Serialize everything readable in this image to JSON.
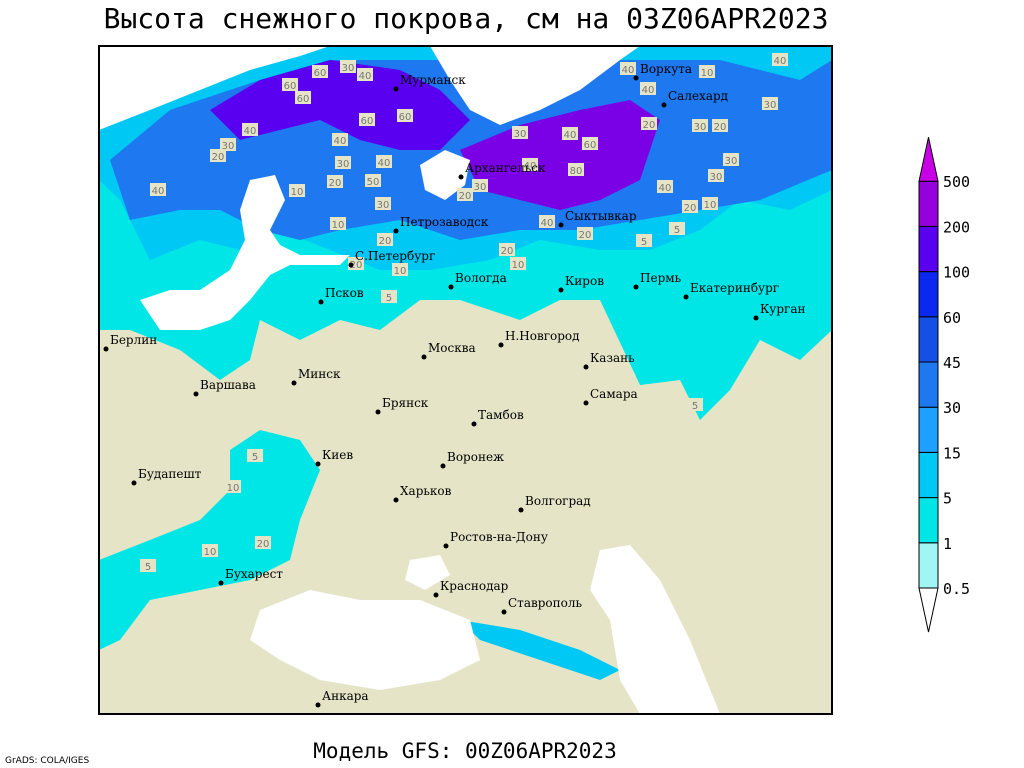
{
  "header": {
    "title": "Высота снежного покрова, см на 03Z06APR2023"
  },
  "legend": {
    "levels": [
      0.5,
      1,
      5,
      15,
      30,
      45,
      60,
      100,
      200,
      500
    ],
    "colors": [
      "#ffffff",
      "#a0f5f5",
      "#00e6e6",
      "#00c8f5",
      "#1ea0ff",
      "#1e78f0",
      "#1450e6",
      "#0a28f0",
      "#5a00f0",
      "#9600dc",
      "#c800e6"
    ]
  },
  "cities": [
    "Мурманск",
    "Воркута",
    "Салехард",
    "Архангельск",
    "Сыктывкар",
    "Петрозаводск",
    "С.Петербург",
    "Вологда",
    "Киров",
    "Пермь",
    "Екатеринбург",
    "Курган",
    "Псков",
    "Берлин",
    "Москва",
    "Н.Новгород",
    "Казань",
    "Варшава",
    "Минск",
    "Брянск",
    "Тамбов",
    "Самара",
    "Киев",
    "Воронеж",
    "Будапешт",
    "Харьков",
    "Волгоград",
    "Ростов-на-Дону",
    "Бухарест",
    "Краснодар",
    "Ставрополь",
    "Анкара"
  ],
  "contour_labels": [
    60,
    30,
    40,
    60,
    60,
    40,
    30,
    20,
    60,
    60,
    40,
    30,
    40,
    50,
    20,
    10,
    30,
    10,
    20,
    10,
    20,
    20,
    30,
    40,
    80,
    30,
    40,
    60,
    40,
    40,
    10,
    40,
    30,
    20,
    30,
    20,
    30,
    30,
    40,
    20,
    10,
    40,
    20,
    5,
    5,
    20,
    10,
    5,
    5,
    5,
    10,
    20,
    10,
    5,
    40
  ],
  "footer": {
    "model": "Модель GFS: 00Z06APR2023",
    "credit": "GrADS: COLA/IGES"
  }
}
